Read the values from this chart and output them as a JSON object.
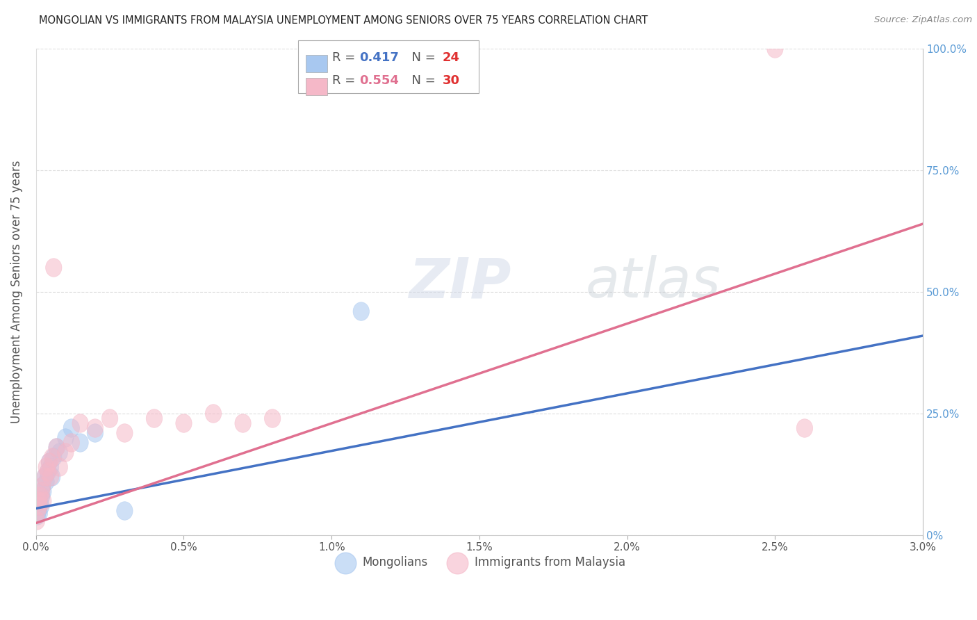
{
  "title": "MONGOLIAN VS IMMIGRANTS FROM MALAYSIA UNEMPLOYMENT AMONG SENIORS OVER 75 YEARS CORRELATION CHART",
  "source": "Source: ZipAtlas.com",
  "ylabel": "Unemployment Among Seniors over 75 years",
  "xlim": [
    0.0,
    0.03
  ],
  "ylim": [
    0.0,
    1.0
  ],
  "R1": 0.417,
  "N1": 24,
  "R2": 0.554,
  "N2": 30,
  "color1": "#A8C8F0",
  "color2": "#F5B8C8",
  "line_color1": "#4472C4",
  "line_color2": "#E07090",
  "background_color": "#FFFFFF",
  "watermark": "ZIPatlas",
  "legend_label1": "Mongolians",
  "legend_label2": "Immigrants from Malaysia",
  "mongolians_x": [
    5e-05,
    8e-05,
    0.0001,
    0.00012,
    0.00015,
    0.00018,
    0.0002,
    0.00022,
    0.00025,
    0.0003,
    0.00035,
    0.0004,
    0.00045,
    0.0005,
    0.00055,
    0.0006,
    0.0007,
    0.0008,
    0.001,
    0.0012,
    0.0015,
    0.002,
    0.003,
    0.011
  ],
  "mongolians_y": [
    0.04,
    0.05,
    0.06,
    0.045,
    0.07,
    0.06,
    0.08,
    0.1,
    0.09,
    0.12,
    0.11,
    0.13,
    0.15,
    0.14,
    0.12,
    0.16,
    0.18,
    0.17,
    0.2,
    0.22,
    0.19,
    0.21,
    0.05,
    0.46
  ],
  "malaysia_x": [
    3e-05,
    6e-05,
    0.0001,
    0.00012,
    0.00015,
    0.0002,
    0.00022,
    0.00025,
    0.0003,
    0.00035,
    0.0004,
    0.00045,
    0.0005,
    0.00055,
    0.0006,
    0.0007,
    0.0008,
    0.001,
    0.0012,
    0.0015,
    0.002,
    0.0025,
    0.003,
    0.004,
    0.005,
    0.006,
    0.007,
    0.008,
    0.025,
    0.026
  ],
  "malaysia_y": [
    0.03,
    0.05,
    0.07,
    0.06,
    0.08,
    0.09,
    0.1,
    0.07,
    0.12,
    0.14,
    0.13,
    0.15,
    0.12,
    0.16,
    0.55,
    0.18,
    0.14,
    0.17,
    0.19,
    0.23,
    0.22,
    0.24,
    0.21,
    0.24,
    0.23,
    0.25,
    0.23,
    0.24,
    1.0,
    0.22
  ],
  "blue_line_x0": 0.0,
  "blue_line_y0": 0.055,
  "blue_line_x1": 0.03,
  "blue_line_y1": 0.41,
  "pink_line_x0": 0.0,
  "pink_line_y0": 0.025,
  "pink_line_x1": 0.03,
  "pink_line_y1": 0.64
}
